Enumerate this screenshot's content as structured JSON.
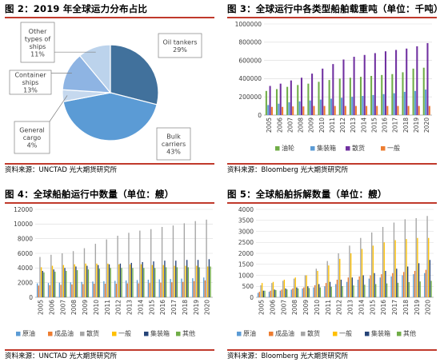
{
  "panels": {
    "p1": {
      "title": "图 2：2019 年全球运力分布占比",
      "source": "资料来源：UNCTAD 光大期货研究所"
    },
    "p2": {
      "title": "图 3：全球运行中各类型船舶载重吨（单位：千吨）",
      "source": "资料来源：Bloomberg 光大期货研究所"
    },
    "p3": {
      "title": "图 4：全球船舶运行中数量（单位：艘）",
      "source": "资料来源：UNCTAD 光大期货研究所"
    },
    "p4": {
      "title": "图 5：全球船舶拆解数量（单位：艘）",
      "source": "资料来源：Bloomberg 光大期货研究所"
    }
  },
  "colors": {
    "accent_line": "#c0392b"
  },
  "chart_data": [
    {
      "id": "pie",
      "type": "pie",
      "title": "",
      "slices": [
        {
          "label": [
            "Oil tankers",
            "29%"
          ],
          "value": 29,
          "color": "#41719c"
        },
        {
          "label": [
            "Bulk",
            "carriers",
            "43%"
          ],
          "value": 43,
          "color": "#5b9bd5"
        },
        {
          "label": [
            "General",
            "cargo",
            "4%"
          ],
          "value": 4,
          "color": "#c5d8ee"
        },
        {
          "label": [
            "Container",
            "ships",
            "13%"
          ],
          "value": 13,
          "color": "#8eb4e3"
        },
        {
          "label": [
            "Other",
            "types of",
            "ships",
            "11%"
          ],
          "value": 11,
          "color": "#bcd3ec"
        }
      ]
    },
    {
      "id": "dwt",
      "type": "bar",
      "title": "",
      "ylim": [
        0,
        1000000
      ],
      "yticks": [
        "0",
        "200000",
        "400000",
        "600000",
        "800000",
        "1000000"
      ],
      "categories": [
        "2005",
        "2006",
        "2007",
        "2008",
        "2009",
        "2010",
        "2011",
        "2012",
        "2013",
        "2014",
        "2015",
        "2016",
        "2017",
        "2018",
        "2019",
        "2020"
      ],
      "series": [
        {
          "name": "油轮",
          "color": "#70ad47",
          "values": [
            265000,
            285000,
            310000,
            330000,
            345000,
            365000,
            385000,
            400000,
            410000,
            420000,
            430000,
            440000,
            450000,
            470000,
            510000,
            520000
          ]
        },
        {
          "name": "集装箱",
          "color": "#5b9bd5",
          "values": [
            110000,
            125000,
            140000,
            150000,
            160000,
            170000,
            180000,
            190000,
            200000,
            210000,
            220000,
            230000,
            240000,
            255000,
            265000,
            280000
          ]
        },
        {
          "name": "散货",
          "color": "#7030a0",
          "values": [
            320000,
            345000,
            380000,
            410000,
            455000,
            510000,
            560000,
            610000,
            640000,
            660000,
            680000,
            700000,
            715000,
            730000,
            755000,
            790000
          ]
        },
        {
          "name": "一般",
          "color": "#ed7d31",
          "values": [
            90000,
            90000,
            95000,
            95000,
            100000,
            100000,
            100000,
            100000,
            100000,
            100000,
            100000,
            100000,
            100000,
            100000,
            100000,
            100000
          ]
        }
      ]
    },
    {
      "id": "fleet",
      "type": "bar",
      "title": "",
      "ylim": [
        0,
        12000
      ],
      "yticks": [
        "0",
        "2000",
        "4000",
        "6000",
        "8000",
        "10000",
        "12000"
      ],
      "categories": [
        "2005",
        "2006",
        "2007",
        "2008",
        "2009",
        "2010",
        "2011",
        "2012",
        "2013",
        "2014",
        "2015",
        "2016",
        "2017",
        "2018",
        "2019",
        "2020"
      ],
      "series": [
        {
          "name": "原油",
          "color": "#5b9bd5",
          "values": [
            1900,
            1950,
            2000,
            2050,
            2100,
            2150,
            2200,
            2250,
            2300,
            2350,
            2400,
            2450,
            2500,
            2550,
            2600,
            2700
          ]
        },
        {
          "name": "成品油",
          "color": "#ed7d31",
          "values": [
            1600,
            1650,
            1700,
            1750,
            1800,
            1850,
            1850,
            1850,
            1900,
            1900,
            1950,
            2000,
            2050,
            2100,
            2200,
            2300
          ]
        },
        {
          "name": "散货",
          "color": "#a5a5a5",
          "values": [
            5500,
            5800,
            6000,
            6300,
            6700,
            7300,
            7900,
            8400,
            8800,
            9100,
            9300,
            9600,
            9800,
            10100,
            10400,
            10600
          ]
        },
        {
          "name": "一般",
          "color": "#ffc000",
          "values": [
            4100,
            4300,
            4400,
            4500,
            4600,
            4600,
            4600,
            4500,
            4500,
            4500,
            4400,
            4400,
            4300,
            4300,
            4300,
            4200
          ]
        },
        {
          "name": "集装箱",
          "color": "#264478",
          "values": [
            3600,
            3800,
            4000,
            4200,
            4300,
            4400,
            4500,
            4600,
            4700,
            4800,
            4900,
            5000,
            5000,
            5100,
            5100,
            5200
          ]
        },
        {
          "name": "其他",
          "color": "#70ad47",
          "values": [
            3400,
            3500,
            3600,
            3700,
            3800,
            3900,
            4000,
            4000,
            4000,
            4000,
            4000,
            4100,
            4100,
            4100,
            4100,
            4200
          ]
        }
      ]
    },
    {
      "id": "scrap",
      "type": "bar",
      "title": "",
      "ylim": [
        0,
        4000
      ],
      "yticks": [
        "0",
        "500",
        "1000",
        "1500",
        "2000",
        "2500",
        "3000",
        "3500",
        "4000"
      ],
      "categories": [
        "2005",
        "2006",
        "2007",
        "2008",
        "2009",
        "2010",
        "2011",
        "2012",
        "2013",
        "2014",
        "2015",
        "2016",
        "2017",
        "2018",
        "2019",
        "2020"
      ],
      "series": [
        {
          "name": "原油",
          "color": "#5b9bd5",
          "values": [
            200,
            250,
            300,
            350,
            400,
            450,
            500,
            600,
            700,
            800,
            850,
            900,
            950,
            1000,
            1050,
            1100
          ]
        },
        {
          "name": "成品油",
          "color": "#ed7d31",
          "values": [
            250,
            300,
            350,
            400,
            450,
            550,
            650,
            800,
            900,
            950,
            1000,
            1050,
            1100,
            1150,
            1200,
            1250
          ]
        },
        {
          "name": "散货",
          "color": "#a5a5a5",
          "values": [
            550,
            650,
            750,
            850,
            1000,
            1300,
            1650,
            2000,
            2350,
            2700,
            2950,
            3200,
            3400,
            3550,
            3600,
            3700
          ]
        },
        {
          "name": "一般",
          "color": "#ffc000",
          "values": [
            650,
            700,
            800,
            900,
            1000,
            1200,
            1450,
            1750,
            2000,
            2200,
            2350,
            2500,
            2600,
            2650,
            2700,
            2700
          ]
        },
        {
          "name": "集装箱",
          "color": "#264478",
          "values": [
            300,
            350,
            400,
            450,
            500,
            600,
            700,
            800,
            900,
            1000,
            1100,
            1200,
            1300,
            1400,
            1550,
            1700
          ]
        },
        {
          "name": "其他",
          "color": "#70ad47",
          "values": [
            300,
            330,
            360,
            400,
            420,
            450,
            480,
            510,
            540,
            570,
            600,
            630,
            660,
            690,
            720,
            750
          ]
        }
      ]
    }
  ]
}
